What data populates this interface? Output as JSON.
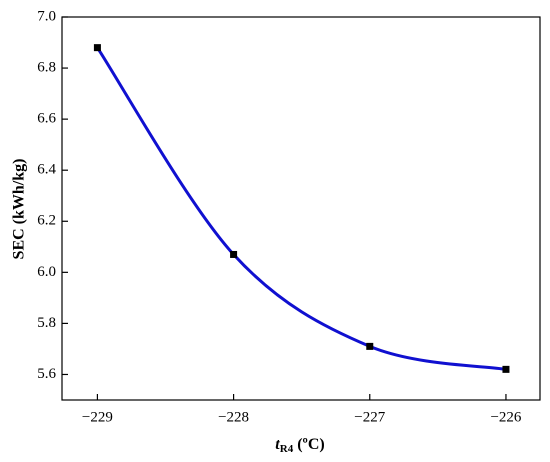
{
  "chart_data": {
    "type": "line",
    "x_label": {
      "var": "t",
      "sub": "R4",
      "unit": "(ºC)"
    },
    "y_label": "SEC (kWh/kg)",
    "x": [
      -229,
      -228,
      -227,
      -226
    ],
    "series": [
      {
        "color": "#1010d0",
        "marker_color": "#000000",
        "values": [
          6.88,
          6.07,
          5.71,
          5.62
        ]
      }
    ],
    "xlim": [
      -229.26,
      -225.75
    ],
    "ylim": [
      5.5,
      7.0
    ],
    "xticks": [
      {
        "value": -229,
        "label": "−229"
      },
      {
        "value": -228,
        "label": "−228"
      },
      {
        "value": -227,
        "label": "−227"
      },
      {
        "value": -226,
        "label": "−226"
      }
    ],
    "yticks": [
      5.6,
      5.8,
      {
        "value": 6.0,
        "label": "6.0"
      },
      6.2,
      6.4,
      6.6,
      6.8,
      {
        "value": 7.0,
        "label": "7.0"
      }
    ],
    "grid": false
  }
}
